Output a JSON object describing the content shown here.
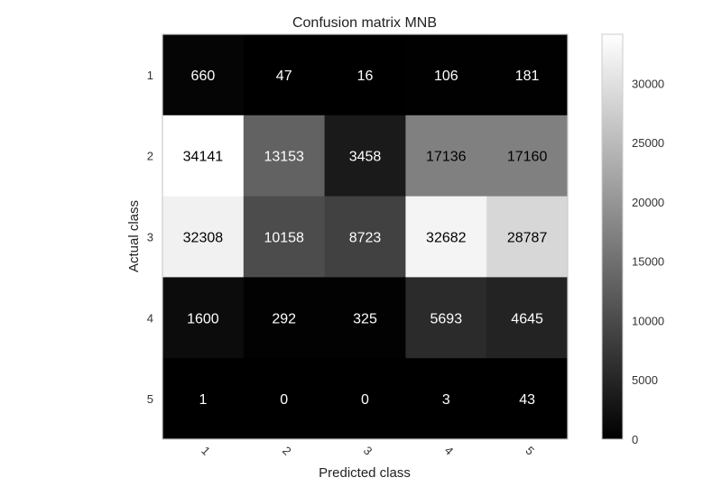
{
  "chart_data": {
    "type": "heatmap",
    "title": "Confusion matrix MNB",
    "xlabel": "Predicted class",
    "ylabel": "Actual class",
    "x_categories": [
      "1",
      "2",
      "3",
      "4",
      "5"
    ],
    "y_categories": [
      "1",
      "2",
      "3",
      "4",
      "5"
    ],
    "values": [
      [
        660,
        47,
        16,
        106,
        181
      ],
      [
        34141,
        13153,
        3458,
        17136,
        17160
      ],
      [
        32308,
        10158,
        8723,
        32682,
        28787
      ],
      [
        1600,
        292,
        325,
        5693,
        4645
      ],
      [
        1,
        0,
        0,
        3,
        43
      ]
    ],
    "colormap": "gray",
    "vmin": 0,
    "vmax": 34141,
    "colorbar_ticks": [
      0,
      5000,
      10000,
      15000,
      20000,
      25000,
      30000
    ],
    "grid": false,
    "x_tick_rotation": "45deg"
  }
}
